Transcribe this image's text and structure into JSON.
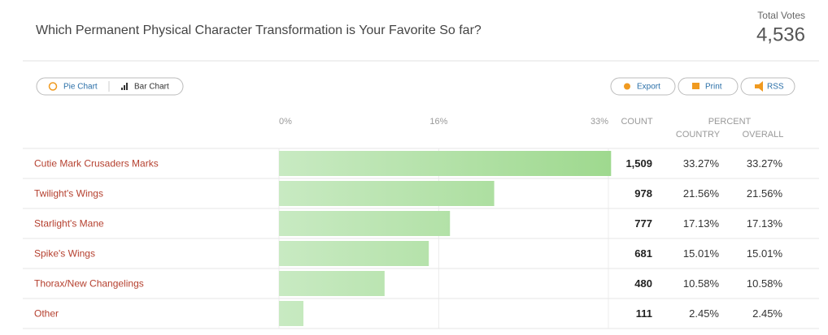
{
  "header": {
    "title": "Which Permanent Physical Character Transformation is Your Favorite So far?",
    "total_votes_label": "Total Votes",
    "total_votes": "4,536"
  },
  "buttons": {
    "view": [
      "Pie Chart",
      "Bar Chart"
    ],
    "actions": [
      "Export",
      "Print",
      "RSS"
    ]
  },
  "columns": {
    "count": "COUNT",
    "percent": "PERCENT",
    "country": "COUNTRY",
    "overall": "OVERALL"
  },
  "chart_data": {
    "type": "bar",
    "orientation": "horizontal",
    "categories": [
      "Cutie Mark Crusaders Marks",
      "Twilight's Wings",
      "Starlight's Mane",
      "Spike's Wings",
      "Thorax/New Changelings",
      "Other"
    ],
    "values": [
      33.27,
      21.56,
      17.13,
      15.01,
      10.58,
      2.45
    ],
    "value_labels": [
      "33.27%",
      "21.56%",
      "17.13%",
      "15.01%",
      "10.58%",
      "2.45%"
    ],
    "counts": [
      "1,509",
      "978",
      "777",
      "681",
      "480",
      "111"
    ],
    "country": [
      "33.27%",
      "21.56%",
      "17.13%",
      "15.01%",
      "10.58%",
      "2.45%"
    ],
    "color": [
      "#c8eac2",
      "#9fd98f"
    ],
    "xlim": [
      0,
      33
    ],
    "xticks": [
      {
        "value": 0,
        "label": "0%"
      },
      {
        "value": 16,
        "label": "16%"
      },
      {
        "value": 33,
        "label": "33%"
      }
    ],
    "grid": true
  }
}
